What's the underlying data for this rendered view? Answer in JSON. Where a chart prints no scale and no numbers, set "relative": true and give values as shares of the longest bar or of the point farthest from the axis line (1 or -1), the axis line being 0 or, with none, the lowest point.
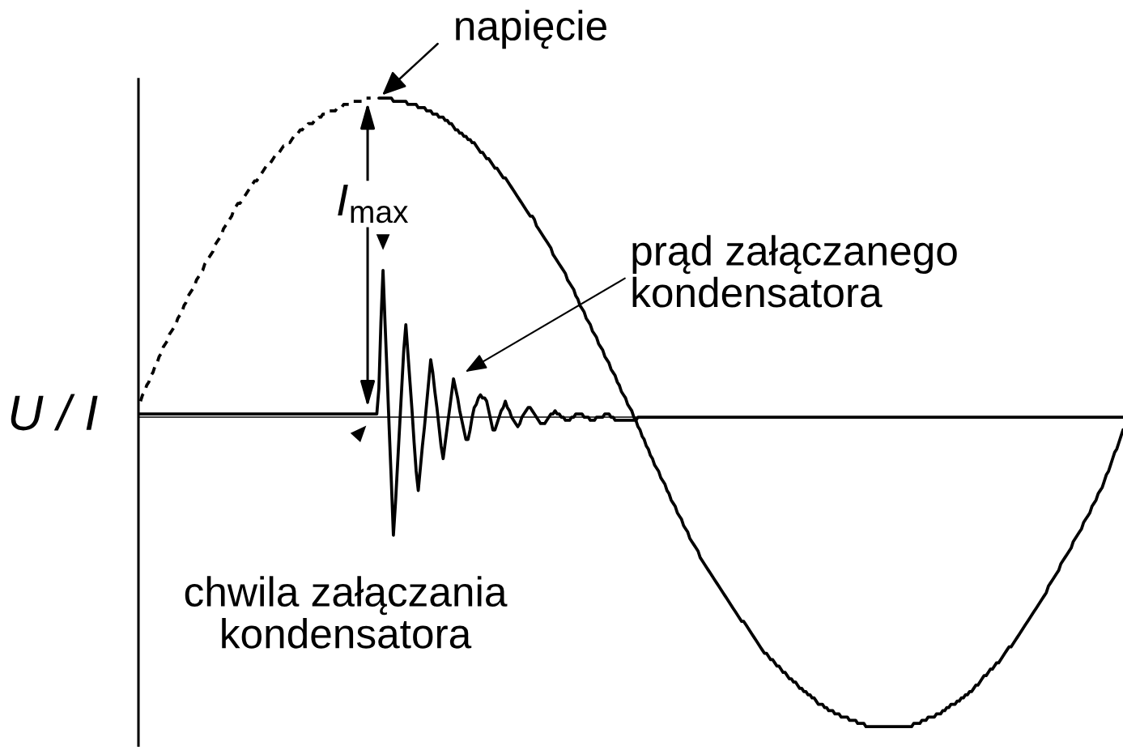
{
  "chart_data": {
    "type": "line",
    "relative": true,
    "ylabel": "U / I",
    "tick_labels": false,
    "categories": [
      null,
      null,
      null,
      null,
      null,
      null,
      null,
      null,
      null,
      null,
      null,
      null,
      null,
      null,
      null,
      null,
      null,
      null,
      null,
      null,
      null,
      null,
      null,
      null,
      null,
      null,
      null,
      null,
      null,
      null,
      null,
      null,
      null,
      null,
      null,
      null,
      null,
      null,
      null,
      null,
      null,
      null,
      null,
      null,
      null,
      null,
      null,
      null,
      null,
      null,
      null,
      null,
      null,
      null,
      null,
      null,
      null,
      null,
      null,
      null,
      null,
      null,
      null,
      null,
      null,
      null,
      null,
      null,
      null,
      null,
      null,
      null,
      null,
      null,
      null,
      null,
      null,
      null,
      null,
      null,
      null,
      null,
      null,
      null,
      null,
      null,
      null,
      null,
      null,
      null,
      null,
      null,
      null,
      null,
      null,
      null,
      null,
      null,
      null,
      null,
      null,
      null,
      null,
      null,
      null,
      null,
      null,
      null,
      null,
      null,
      null,
      null,
      null,
      null,
      null,
      null,
      null,
      null,
      null,
      null,
      null,
      null,
      null,
      null,
      null,
      null,
      null,
      null,
      null,
      null,
      null,
      null,
      null,
      null,
      null,
      null,
      null,
      null,
      null,
      null,
      null,
      null,
      null,
      null,
      null,
      null,
      null,
      null,
      null,
      null,
      null,
      null,
      null,
      null,
      null,
      null,
      null,
      null,
      null,
      null,
      null,
      null,
      null,
      null,
      null,
      null,
      null,
      null,
      null,
      null,
      null,
      null,
      null,
      null,
      null,
      null,
      null,
      null,
      null,
      null,
      null,
      null,
      null,
      null,
      null,
      null,
      null,
      null,
      null,
      null,
      null,
      null,
      null,
      null,
      null,
      null,
      null,
      null,
      null,
      null,
      null,
      null,
      null,
      null,
      null,
      null,
      null,
      null,
      null,
      null,
      null,
      null,
      null,
      null,
      null,
      null,
      null,
      null,
      null,
      null,
      null,
      null,
      null,
      null,
      null,
      null,
      null,
      null,
      null,
      null,
      null,
      null,
      null,
      null,
      null,
      null,
      null,
      null,
      null,
      null,
      null,
      null,
      null,
      null,
      null,
      null,
      null,
      null,
      null,
      null,
      null,
      null,
      null,
      null,
      null,
      null,
      null,
      null,
      null,
      null,
      null,
      null,
      null,
      null,
      null,
      null,
      null,
      null,
      null,
      null,
      null,
      null,
      null,
      null,
      null,
      null,
      null,
      null,
      null,
      null,
      null,
      null,
      null,
      null,
      null,
      null,
      null,
      null,
      null,
      null,
      null,
      null,
      null,
      null,
      null,
      null,
      null,
      null,
      null,
      null,
      null,
      null,
      null,
      null,
      null,
      null,
      null,
      null,
      null,
      null,
      null,
      null,
      null,
      null,
      null,
      null,
      null,
      null,
      null,
      null,
      null,
      null,
      null,
      null,
      null,
      null,
      null,
      null,
      null,
      null,
      null,
      null,
      null,
      null,
      null,
      null,
      null,
      null,
      null,
      null,
      null,
      null,
      null,
      null,
      null,
      null,
      null,
      null,
      null,
      null,
      null,
      null,
      null,
      null,
      null,
      null,
      null,
      null,
      null,
      null,
      null,
      null,
      null,
      null,
      null,
      null,
      null,
      null,
      null,
      null,
      null,
      null,
      null,
      null,
      null,
      null,
      null,
      null,
      null,
      null,
      null,
      null,
      null,
      null,
      null,
      null,
      null,
      null,
      null,
      null,
      null,
      null,
      null,
      null,
      null,
      null,
      null,
      null,
      null,
      null,
      null,
      null,
      null,
      null,
      null,
      null,
      null,
      null,
      null,
      null,
      null,
      null,
      null,
      null,
      null,
      null,
      null,
      null,
      null,
      null,
      null,
      null,
      null,
      null,
      null,
      null,
      null,
      null,
      null,
      null,
      null,
      null,
      null,
      null,
      null,
      null,
      null,
      null,
      null,
      null,
      null,
      null,
      null,
      null,
      null,
      null,
      null,
      null,
      null,
      null,
      null,
      null,
      null,
      null,
      null,
      null,
      null,
      null,
      null,
      null,
      null,
      null,
      null,
      null,
      null,
      null,
      null,
      null,
      null,
      null,
      null,
      null,
      null,
      null,
      null,
      null
    ],
    "series": [
      {
        "color": "#000000",
        "line_style": "dotted",
        "values": [
          null,
          0.05,
          0.07,
          0.08,
          0.1,
          0.11,
          0.13,
          0.14,
          0.16,
          0.17,
          0.19,
          0.2,
          0.22,
          0.23,
          0.24,
          0.26,
          0.27,
          0.28,
          0.29,
          0.31,
          0.32,
          0.33,
          0.35,
          0.36,
          0.38,
          0.39,
          0.4,
          0.41,
          0.43,
          0.44,
          0.45,
          0.46,
          0.48,
          0.49,
          0.5,
          0.51,
          0.52,
          0.54,
          0.55,
          0.56,
          0.57,
          0.59,
          0.6,
          0.61,
          0.62,
          0.63,
          0.65,
          0.66,
          0.67,
          0.67,
          0.68,
          0.69,
          0.7,
          0.71,
          0.72,
          0.73,
          0.74,
          0.74,
          0.75,
          0.76,
          0.77,
          0.78,
          0.79,
          0.79,
          0.8,
          0.81,
          0.82,
          0.82,
          0.83,
          0.84,
          0.85,
          0.85,
          0.86,
          0.86,
          0.87,
          0.88,
          0.88,
          0.89,
          0.9,
          0.9,
          0.91,
          0.91,
          0.92,
          0.92,
          0.92,
          0.93,
          0.93,
          0.94,
          0.94,
          0.95,
          0.95,
          0.95,
          0.96,
          0.96,
          0.96,
          0.96,
          0.97,
          0.97,
          0.97,
          0.98,
          0.98,
          0.98,
          0.98,
          0.99,
          0.99,
          0.99,
          0.99,
          0.99,
          0.99,
          1,
          1,
          1,
          1,
          null,
          null,
          null,
          null,
          null,
          null,
          null,
          null,
          null,
          null,
          null,
          null,
          null,
          null,
          null,
          null,
          null,
          null,
          null,
          null,
          null,
          null,
          null,
          null,
          null,
          null,
          null,
          null,
          null,
          null,
          null,
          null,
          null,
          null,
          null,
          null,
          null,
          null,
          null,
          null,
          null,
          null,
          null,
          null,
          null,
          null,
          null,
          null,
          null,
          null,
          null,
          null,
          null,
          null,
          null,
          null,
          null,
          null,
          null,
          null,
          null,
          null,
          null,
          null,
          null,
          null,
          null,
          null,
          null,
          null,
          null,
          null,
          null,
          null,
          null,
          null,
          null,
          null,
          null,
          null,
          null,
          null,
          null,
          null,
          null,
          null,
          null,
          null,
          null,
          null,
          null,
          null,
          null,
          null,
          null,
          null,
          null,
          null,
          null,
          null,
          null,
          null,
          null,
          null,
          null,
          null,
          null,
          null,
          null,
          null,
          null,
          null,
          null,
          null,
          null,
          null,
          null,
          null,
          null,
          null,
          null,
          null,
          null,
          null,
          null,
          null,
          null,
          null,
          null,
          null,
          null,
          null,
          null,
          null,
          null,
          null,
          null,
          null,
          null,
          null,
          null,
          null,
          null,
          null,
          null,
          null,
          null,
          null,
          null,
          null,
          null,
          null,
          null,
          null,
          null,
          null,
          null,
          null,
          null,
          null,
          null,
          null,
          null,
          null,
          null,
          null,
          null,
          null,
          null,
          null,
          null,
          null,
          null,
          null,
          null,
          null,
          null,
          null,
          null,
          null,
          null,
          null,
          null,
          null,
          null,
          null,
          null,
          null,
          null,
          null,
          null,
          null,
          null,
          null,
          null,
          null,
          null,
          null,
          null,
          null,
          null,
          null,
          null,
          null,
          null,
          null,
          null,
          null,
          null,
          null,
          null,
          null,
          null,
          null,
          null,
          null,
          null,
          null,
          null,
          null,
          null,
          null,
          null,
          null,
          null,
          null,
          null,
          null,
          null,
          null,
          null,
          null,
          null,
          null,
          null,
          null,
          null,
          null,
          null,
          null,
          null,
          null,
          null,
          null,
          null,
          null,
          null,
          null,
          null,
          null,
          null,
          null,
          null,
          null,
          null,
          null,
          null,
          null,
          null,
          null,
          null,
          null,
          null,
          null,
          null,
          null,
          null,
          null,
          null,
          null,
          null,
          null,
          null,
          null,
          null,
          null,
          null,
          null,
          null,
          null,
          null,
          null,
          null,
          null,
          null,
          null,
          null,
          null,
          null,
          null,
          null,
          null,
          null,
          null,
          null,
          null,
          null,
          null,
          null,
          null,
          null,
          null,
          null,
          null,
          null,
          null,
          null,
          null,
          null,
          null,
          null,
          null,
          null,
          null,
          null,
          null,
          null,
          null,
          null,
          null,
          null,
          null,
          null,
          null,
          null,
          null,
          null,
          null,
          null,
          null,
          null,
          null,
          null,
          null,
          null,
          null,
          null,
          null,
          null,
          null,
          null,
          null,
          null,
          null,
          null,
          null,
          null,
          null,
          null,
          null,
          null,
          null,
          null,
          null,
          null,
          null,
          null,
          null,
          null,
          null,
          null,
          null,
          null
        ]
      },
      {
        "color": "#000000",
        "values": [
          null,
          null,
          null,
          null,
          null,
          null,
          null,
          null,
          null,
          null,
          null,
          null,
          null,
          null,
          null,
          null,
          null,
          null,
          null,
          null,
          null,
          null,
          null,
          null,
          null,
          null,
          null,
          null,
          null,
          null,
          null,
          null,
          null,
          null,
          null,
          null,
          null,
          null,
          null,
          null,
          null,
          null,
          null,
          null,
          null,
          null,
          null,
          null,
          null,
          null,
          null,
          null,
          null,
          null,
          null,
          null,
          null,
          null,
          null,
          null,
          null,
          null,
          null,
          null,
          null,
          null,
          null,
          null,
          null,
          null,
          null,
          null,
          null,
          null,
          null,
          null,
          null,
          null,
          null,
          null,
          null,
          null,
          null,
          null,
          null,
          null,
          null,
          null,
          null,
          null,
          null,
          null,
          null,
          null,
          null,
          null,
          null,
          null,
          null,
          null,
          null,
          null,
          null,
          null,
          null,
          null,
          null,
          null,
          null,
          null,
          null,
          null,
          null,
          null,
          null,
          null,
          1,
          1,
          1,
          1,
          1,
          1,
          1,
          0.99,
          0.99,
          0.99,
          0.99,
          0.99,
          0.99,
          0.99,
          0.98,
          0.98,
          0.98,
          0.98,
          0.98,
          0.97,
          0.97,
          0.97,
          0.97,
          0.96,
          0.96,
          0.96,
          0.95,
          0.95,
          0.95,
          0.94,
          0.94,
          0.94,
          0.93,
          0.93,
          0.92,
          0.92,
          0.91,
          0.9,
          0.9,
          0.89,
          0.89,
          0.88,
          0.88,
          0.87,
          0.87,
          0.86,
          0.86,
          0.85,
          0.84,
          0.83,
          0.83,
          0.82,
          0.81,
          0.81,
          0.8,
          0.79,
          0.78,
          0.78,
          0.77,
          0.76,
          0.75,
          0.75,
          0.74,
          0.73,
          0.72,
          0.71,
          0.7,
          0.69,
          0.68,
          0.67,
          0.66,
          0.65,
          0.64,
          0.63,
          0.63,
          0.62,
          0.6,
          0.59,
          0.58,
          0.57,
          0.56,
          0.55,
          0.54,
          0.53,
          0.51,
          0.5,
          0.49,
          0.48,
          0.47,
          0.46,
          0.45,
          0.43,
          0.42,
          0.41,
          0.4,
          0.38,
          0.37,
          0.35,
          0.34,
          0.33,
          0.31,
          0.3,
          0.29,
          0.27,
          0.26,
          0.25,
          0.23,
          0.22,
          0.21,
          0.19,
          0.18,
          0.17,
          0.15,
          0.14,
          0.13,
          0.11,
          0.1,
          0.08,
          0.07,
          0.06,
          0.04,
          0.03,
          0.02,
          0,
          -0.01,
          -0.03,
          -0.04,
          -0.06,
          -0.07,
          -0.09,
          -0.1,
          -0.12,
          -0.13,
          -0.15,
          -0.16,
          -0.17,
          -0.19,
          -0.2,
          -0.21,
          -0.23,
          -0.24,
          -0.26,
          -0.27,
          -0.28,
          -0.3,
          -0.31,
          -0.32,
          -0.34,
          -0.35,
          -0.36,
          -0.38,
          -0.39,
          -0.4,
          -0.41,
          -0.42,
          -0.44,
          -0.45,
          -0.46,
          -0.47,
          -0.48,
          -0.49,
          -0.5,
          -0.51,
          -0.52,
          -0.53,
          -0.54,
          -0.55,
          -0.56,
          -0.57,
          -0.58,
          -0.59,
          -0.6,
          -0.61,
          -0.62,
          -0.63,
          -0.64,
          -0.64,
          -0.65,
          -0.66,
          -0.67,
          -0.68,
          -0.69,
          -0.7,
          -0.71,
          -0.72,
          -0.73,
          -0.74,
          -0.74,
          -0.75,
          -0.76,
          -0.76,
          -0.77,
          -0.78,
          -0.78,
          -0.79,
          -0.8,
          -0.8,
          -0.81,
          -0.82,
          -0.82,
          -0.83,
          -0.83,
          -0.84,
          -0.85,
          -0.85,
          -0.86,
          -0.86,
          -0.87,
          -0.87,
          -0.88,
          -0.88,
          -0.89,
          -0.9,
          -0.9,
          -0.9,
          -0.91,
          -0.91,
          -0.92,
          -0.92,
          -0.92,
          -0.93,
          -0.93,
          -0.93,
          -0.94,
          -0.94,
          -0.94,
          -0.94,
          -0.95,
          -0.95,
          -0.95,
          -0.95,
          -0.96,
          -0.96,
          -0.96,
          -0.96,
          -0.97,
          -0.97,
          -0.97,
          -0.97,
          -0.97,
          -0.97,
          -0.97,
          -0.97,
          -0.97,
          -0.97,
          -0.97,
          -0.97,
          -0.97,
          -0.97,
          -0.97,
          -0.97,
          -0.97,
          -0.97,
          -0.97,
          -0.97,
          -0.97,
          -0.97,
          -0.97,
          -0.96,
          -0.96,
          -0.96,
          -0.96,
          -0.95,
          -0.95,
          -0.95,
          -0.94,
          -0.94,
          -0.94,
          -0.94,
          -0.93,
          -0.93,
          -0.93,
          -0.92,
          -0.92,
          -0.91,
          -0.91,
          -0.9,
          -0.9,
          -0.9,
          -0.89,
          -0.89,
          -0.88,
          -0.88,
          -0.87,
          -0.87,
          -0.86,
          -0.86,
          -0.85,
          -0.84,
          -0.84,
          -0.83,
          -0.82,
          -0.81,
          -0.81,
          -0.8,
          -0.79,
          -0.79,
          -0.78,
          -0.77,
          -0.77,
          -0.76,
          -0.75,
          -0.74,
          -0.73,
          -0.72,
          -0.72,
          -0.71,
          -0.7,
          -0.69,
          -0.68,
          -0.67,
          -0.66,
          -0.65,
          -0.64,
          -0.63,
          -0.62,
          -0.61,
          -0.6,
          -0.59,
          -0.58,
          -0.57,
          -0.56,
          -0.55,
          -0.53,
          -0.52,
          -0.51,
          -0.5,
          -0.49,
          -0.48,
          -0.46,
          -0.45,
          -0.44,
          -0.43,
          -0.42,
          -0.41,
          -0.39,
          -0.38,
          -0.37,
          -0.36,
          -0.35,
          -0.33,
          -0.32,
          -0.31,
          -0.3,
          -0.28,
          -0.27,
          -0.26,
          -0.24,
          -0.23,
          -0.22,
          -0.2,
          -0.18,
          -0.17,
          -0.15,
          -0.13,
          -0.11,
          -0.1,
          -0.08,
          -0.06,
          -0.04
        ]
      },
      {
        "color": "#000000",
        "values": [
          0.01,
          0.01,
          0.01,
          0.01,
          0.01,
          0.01,
          0.01,
          0.01,
          0.01,
          0.01,
          0.01,
          0.01,
          0.01,
          0.01,
          0.01,
          0.01,
          0.01,
          0.01,
          0.01,
          0.01,
          0.01,
          0.01,
          0.01,
          0.01,
          0.01,
          0.01,
          0.01,
          0.01,
          0.01,
          0.01,
          0.01,
          0.01,
          0.01,
          0.01,
          0.01,
          0.01,
          0.01,
          0.01,
          0.01,
          0.01,
          0.01,
          0.01,
          0.01,
          0.01,
          0.01,
          0.01,
          0.01,
          0.01,
          0.01,
          0.01,
          0.01,
          0.01,
          0.01,
          0.01,
          0.01,
          0.01,
          0.01,
          0.01,
          0.01,
          0.01,
          0.01,
          0.01,
          0.01,
          0.01,
          0.01,
          0.01,
          0.01,
          0.01,
          0.01,
          0.01,
          0.01,
          0.01,
          0.01,
          0.01,
          0.01,
          0.01,
          0.01,
          0.01,
          0.01,
          0.01,
          0.01,
          0.01,
          0.01,
          0.01,
          0.01,
          0.01,
          0.01,
          0.01,
          0.01,
          0.01,
          0.01,
          0.01,
          0.01,
          0.01,
          0.01,
          0.01,
          0.01,
          0.01,
          0.01,
          0.01,
          0.01,
          0.01,
          0.01,
          0.01,
          0.01,
          0.01,
          0.01,
          0.01,
          0.01,
          0.01,
          0.01,
          0.01,
          0.01,
          0.01,
          0.01,
          0.01,
          0.09,
          0.3,
          0.46,
          0.29,
          0.13,
          -0.04,
          -0.2,
          -0.37,
          -0.27,
          -0.15,
          -0.03,
          0.09,
          0.21,
          0.29,
          0.2,
          0.11,
          0.02,
          -0.08,
          -0.17,
          -0.23,
          -0.16,
          -0.09,
          -0.03,
          0.04,
          0.11,
          0.18,
          0.14,
          0.08,
          0.03,
          -0.03,
          -0.09,
          -0.13,
          -0.08,
          -0.03,
          0.02,
          0.07,
          0.12,
          0.09,
          0.06,
          0.02,
          -0.01,
          -0.04,
          -0.07,
          -0.07,
          -0.04,
          0,
          0.03,
          0.04,
          0.06,
          0.07,
          0.06,
          0.06,
          0.05,
          0.02,
          -0.01,
          -0.04,
          -0.04,
          -0.02,
          0,
          0.02,
          0.03,
          0.05,
          0.03,
          0.02,
          0,
          -0.01,
          -0.02,
          -0.03,
          -0.02,
          0,
          0.01,
          0.02,
          0.03,
          0.03,
          0.02,
          0.01,
          0,
          -0.01,
          -0.02,
          -0.02,
          -0.02,
          -0.01,
          0,
          0.01,
          0.01,
          0.02,
          0.01,
          0.01,
          0,
          0,
          -0.01,
          -0.01,
          -0.01,
          0,
          0,
          0.01,
          0.01,
          0.01,
          0.01,
          0,
          0,
          0,
          -0.01,
          -0.01,
          -0.01,
          0,
          0,
          0,
          0,
          0.01,
          0.01,
          0.01,
          0,
          0,
          -0.01,
          -0.01,
          -0.01,
          -0.01,
          -0.01,
          -0.01,
          -0.01,
          -0.01,
          -0.01,
          -0.01,
          -0.01,
          0,
          0,
          0,
          0,
          0,
          0,
          0,
          0,
          0,
          0,
          0,
          0,
          0,
          0,
          0,
          0,
          0,
          0,
          0,
          0,
          0,
          0,
          0,
          0,
          0,
          0,
          0,
          0,
          0,
          0,
          0,
          0,
          0,
          0,
          0,
          0,
          0,
          0,
          0,
          0,
          0,
          0,
          0,
          0,
          0,
          0,
          0,
          0,
          0,
          0,
          0,
          0,
          0,
          0,
          0,
          0,
          0,
          0,
          0,
          0,
          0,
          0,
          0,
          0,
          0,
          0,
          0,
          0,
          0,
          0,
          0,
          0,
          0,
          0,
          0,
          0,
          0,
          0,
          0,
          0,
          0,
          0,
          0,
          0,
          0,
          0,
          0,
          0,
          0,
          0,
          0,
          0,
          0,
          0,
          0,
          0,
          0,
          0,
          0,
          0,
          0,
          0,
          0,
          0,
          0,
          0,
          0,
          0,
          0,
          0,
          0,
          0,
          0,
          0,
          0,
          0,
          0,
          0,
          0,
          0,
          0,
          0,
          0,
          0,
          0,
          0,
          0,
          0,
          0,
          0,
          0,
          0,
          0,
          0,
          0,
          0,
          0,
          0,
          0,
          0,
          0,
          0,
          0,
          0,
          0,
          0,
          0,
          0,
          0,
          0,
          0,
          0,
          0,
          0,
          0,
          0,
          0,
          0,
          0,
          0,
          0,
          0,
          0,
          0,
          0,
          0,
          0,
          0,
          0,
          0,
          0,
          0,
          0,
          0,
          0,
          0,
          0,
          0,
          0,
          0,
          0,
          0,
          0,
          0,
          0,
          0,
          0,
          0,
          0,
          0,
          0,
          0,
          0,
          0,
          0,
          0,
          0,
          0,
          0,
          0,
          0,
          0,
          0,
          0,
          0,
          0,
          0,
          0,
          0,
          0,
          0,
          0,
          0,
          0,
          0,
          0,
          0,
          0,
          0,
          0,
          0,
          0,
          0,
          0,
          0,
          0,
          0,
          0,
          0,
          0,
          0,
          0,
          0,
          0,
          0
        ]
      }
    ],
    "annotations": [
      "napięcie",
      "I$_{max}$",
      "prąd załączanego\nkondensatora",
      "chwila załączania\nkondensatora"
    ]
  }
}
